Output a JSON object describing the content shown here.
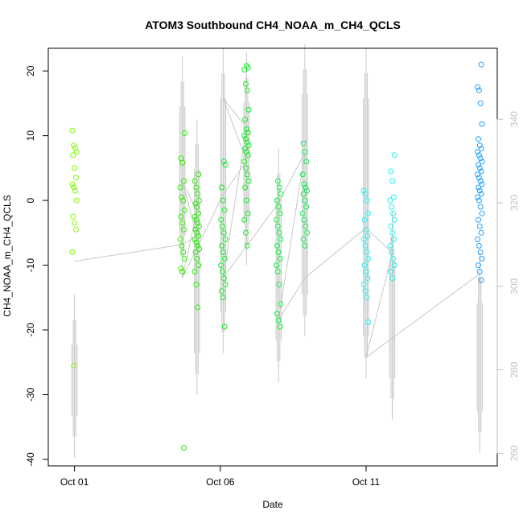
{
  "chart_data": {
    "type": "scatter",
    "title": "ATOM3 Southbound CH4_NOAA_m_CH4_QCLS",
    "xlabel": "Date",
    "ylabel": "CH4_NOAA_m_CH4_QCLS",
    "x_ticks": [
      "Oct 01",
      "Oct 06",
      "Oct 11"
    ],
    "x_tick_days": [
      1,
      6,
      11
    ],
    "xlim_days": [
      0.1,
      15.5
    ],
    "ylim": [
      -41,
      23.5
    ],
    "y_ticks": [
      -40,
      -30,
      -20,
      -10,
      0,
      10,
      20
    ],
    "y2_ticks": [
      260,
      280,
      300,
      320,
      340
    ],
    "y2lim": [
      257,
      357
    ],
    "grid": false,
    "point_series": [
      {
        "name": "",
        "day": 1.0,
        "color": "#7CFC00",
        "y": [
          10.8,
          8.5,
          8.1,
          7.5,
          7.0,
          5.0,
          3.5,
          2.5,
          2.0,
          1.5,
          0.0,
          -2.5,
          -3.5,
          -4.5,
          -8.0,
          -25.5
        ]
      },
      {
        "name": "",
        "day": 4.7,
        "color": "#33EE00",
        "y": [
          10.4,
          6.5,
          5.8,
          3.0,
          2.0,
          0.5,
          0.0,
          -1.5,
          -2.5,
          -3.5,
          -4.5,
          -6.0,
          -7.0,
          -8.0,
          -9.0,
          -10.5,
          -11.0,
          -38.2
        ]
      },
      {
        "name": "",
        "day": 5.2,
        "color": "#22EE00",
        "y": [
          4.0,
          3.0,
          2.0,
          1.0,
          0.0,
          -0.5,
          -1.0,
          -2.0,
          -2.5,
          -3.0,
          -3.5,
          -4.0,
          -4.5,
          -5.0,
          -5.5,
          -6.0,
          -6.5,
          -7.0,
          -7.5,
          -8.0,
          -9.0,
          -10.0,
          -11.0,
          -13.0,
          -16.5
        ]
      },
      {
        "name": "",
        "day": 6.1,
        "color": "#11EE22",
        "y": [
          6.0,
          5.5,
          2.0,
          0.0,
          -1.5,
          -3.0,
          -4.0,
          -5.0,
          -6.0,
          -7.0,
          -8.0,
          -9.0,
          -10.0,
          -11.0,
          -12.0,
          -13.0,
          -14.0,
          -15.0,
          -19.5
        ]
      },
      {
        "name": "",
        "day": 6.9,
        "color": "#11EE22",
        "y": [
          20.8,
          20.5,
          20.2,
          18.0,
          17.0,
          14.0,
          12.5,
          11.0,
          10.5,
          10.0,
          9.5,
          9.0,
          8.5,
          8.0,
          7.5,
          7.0,
          6.0,
          5.0,
          4.0,
          3.0,
          2.0,
          0.0,
          -2.0,
          -3.0,
          -5.0,
          -7.0
        ]
      },
      {
        "name": "",
        "day": 8.0,
        "color": "#11EE44",
        "y": [
          3.0,
          2.0,
          1.0,
          0.0,
          -1.0,
          -2.0,
          -3.0,
          -4.0,
          -5.0,
          -6.0,
          -7.0,
          -8.0,
          -9.0,
          -10.0,
          -11.0,
          -13.0,
          -16.0,
          -17.5,
          -18.5,
          -19.5
        ]
      },
      {
        "name": "",
        "day": 8.9,
        "color": "#11EE55",
        "y": [
          8.8,
          7.5,
          6.0,
          4.0,
          2.5,
          2.0,
          1.5,
          1.0,
          0.0,
          -1.0,
          -2.0,
          -3.0,
          -4.0,
          -5.0,
          -6.0,
          -7.0
        ]
      },
      {
        "name": "",
        "day": 11.0,
        "color": "#22EEEE",
        "y": [
          1.5,
          1.0,
          0.0,
          -2.0,
          -3.0,
          -4.5,
          -5.5,
          -6.0,
          -7.0,
          -8.0,
          -9.0,
          -10.0,
          -11.0,
          -12.0,
          -13.0,
          -14.0,
          -15.0,
          -18.8
        ]
      },
      {
        "name": "",
        "day": 11.9,
        "color": "#22EEEE",
        "y": [
          7.0,
          4.5,
          3.0,
          0.5,
          0.0,
          -1.0,
          -2.0,
          -3.0,
          -4.0,
          -5.0,
          -6.0,
          -7.0,
          -8.0,
          -9.0,
          -10.0,
          -11.0,
          -12.0
        ]
      },
      {
        "name": "",
        "day": 14.9,
        "color": "#1E9FFF",
        "y": [
          21.0,
          17.5,
          17.0,
          15.0,
          11.8,
          9.5,
          8.5,
          8.0,
          7.5,
          7.0,
          6.5,
          6.0,
          5.5,
          5.0,
          4.5,
          4.0,
          3.5,
          3.0,
          2.5,
          2.0,
          1.5,
          1.0,
          0.5,
          0.0,
          -1.0,
          -2.0,
          -3.0,
          -4.0,
          -5.0,
          -6.0,
          -7.0,
          -8.0,
          -9.0,
          -10.0,
          -11.0,
          -12.3
        ]
      }
    ],
    "path_series": {
      "name": "",
      "color": "#c8c8c8",
      "axis": "right",
      "points": [
        [
          1.0,
          306
        ],
        [
          4.7,
          310
        ],
        [
          5.2,
          312
        ],
        [
          4.7,
          325
        ],
        [
          5.2,
          318
        ],
        [
          4.7,
          302
        ],
        [
          6.1,
          322
        ],
        [
          6.9,
          330
        ],
        [
          6.1,
          345
        ],
        [
          6.9,
          338
        ],
        [
          6.1,
          302
        ],
        [
          8.0,
          320
        ],
        [
          8.9,
          332
        ],
        [
          8.0,
          292
        ],
        [
          8.9,
          302
        ],
        [
          11.0,
          314
        ],
        [
          11.9,
          308
        ],
        [
          11.0,
          283
        ],
        [
          14.9,
          303
        ]
      ],
      "spikes": [
        {
          "day": 1.0,
          "hi": 298,
          "lo": 259
        },
        {
          "day": 4.7,
          "hi": 355,
          "lo": 302
        },
        {
          "day": 5.2,
          "hi": 340,
          "lo": 274
        },
        {
          "day": 6.1,
          "hi": 357,
          "lo": 284
        },
        {
          "day": 6.9,
          "hi": 356,
          "lo": 305
        },
        {
          "day": 8.0,
          "hi": 333,
          "lo": 277
        },
        {
          "day": 8.9,
          "hi": 358,
          "lo": 288
        },
        {
          "day": 11.0,
          "hi": 357,
          "lo": 278
        },
        {
          "day": 11.9,
          "hi": 318,
          "lo": 268
        },
        {
          "day": 14.9,
          "hi": 308,
          "lo": 260
        }
      ]
    }
  }
}
